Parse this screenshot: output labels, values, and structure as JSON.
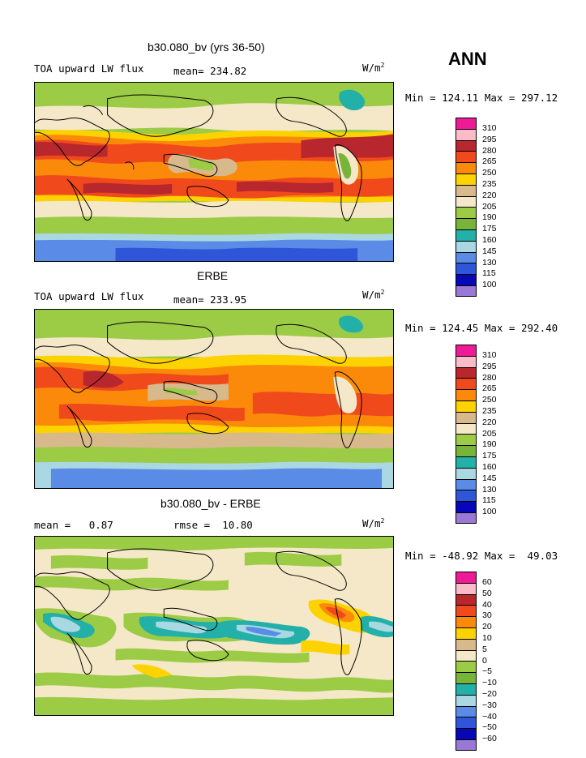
{
  "season": "ANN",
  "units": "W/m",
  "units_sup": "2",
  "panels": [
    {
      "title": "b30.080_bv (yrs 36-50)",
      "left_label": "TOA upward LW flux",
      "center_label": "mean= 234.82",
      "minmax": "Min = 124.11 Max = 297.12"
    },
    {
      "title": "ERBE",
      "left_label": "TOA upward LW flux",
      "center_label": "mean= 233.95",
      "minmax": "Min = 124.45 Max = 292.40"
    },
    {
      "title": "b30.080_bv - ERBE",
      "left_label": "mean =   0.87",
      "center_label": "rmse =  10.80",
      "minmax": "Min = -48.92 Max =  49.03"
    }
  ],
  "colorbar_abs": {
    "labels": [
      "310",
      "295",
      "280",
      "265",
      "250",
      "235",
      "220",
      "205",
      "190",
      "175",
      "160",
      "145",
      "130",
      "115",
      "100"
    ],
    "colors": [
      "#ee1a96",
      "#fbbcc8",
      "#b8262e",
      "#f04a1c",
      "#fb8a0a",
      "#fcd200",
      "#d8b98c",
      "#f5e8c8",
      "#9ccb46",
      "#78b43a",
      "#22b0a8",
      "#a9d8e2",
      "#5a8be6",
      "#2f55d8",
      "#0707b8",
      "#9a78d6"
    ]
  },
  "colorbar_diff": {
    "labels": [
      "60",
      "50",
      "40",
      "30",
      "20",
      "10",
      "5",
      "0",
      "−5",
      "−10",
      "−20",
      "−30",
      "−40",
      "−50",
      "−60"
    ],
    "colors": [
      "#ee1a96",
      "#fbbcc8",
      "#b8262e",
      "#f04a1c",
      "#fb8a0a",
      "#fcd200",
      "#d8b98c",
      "#f5e8c8",
      "#9ccb46",
      "#78b43a",
      "#22b0a8",
      "#a9d8e2",
      "#5a8be6",
      "#2f55d8",
      "#0707b8",
      "#9a78d6"
    ]
  }
}
